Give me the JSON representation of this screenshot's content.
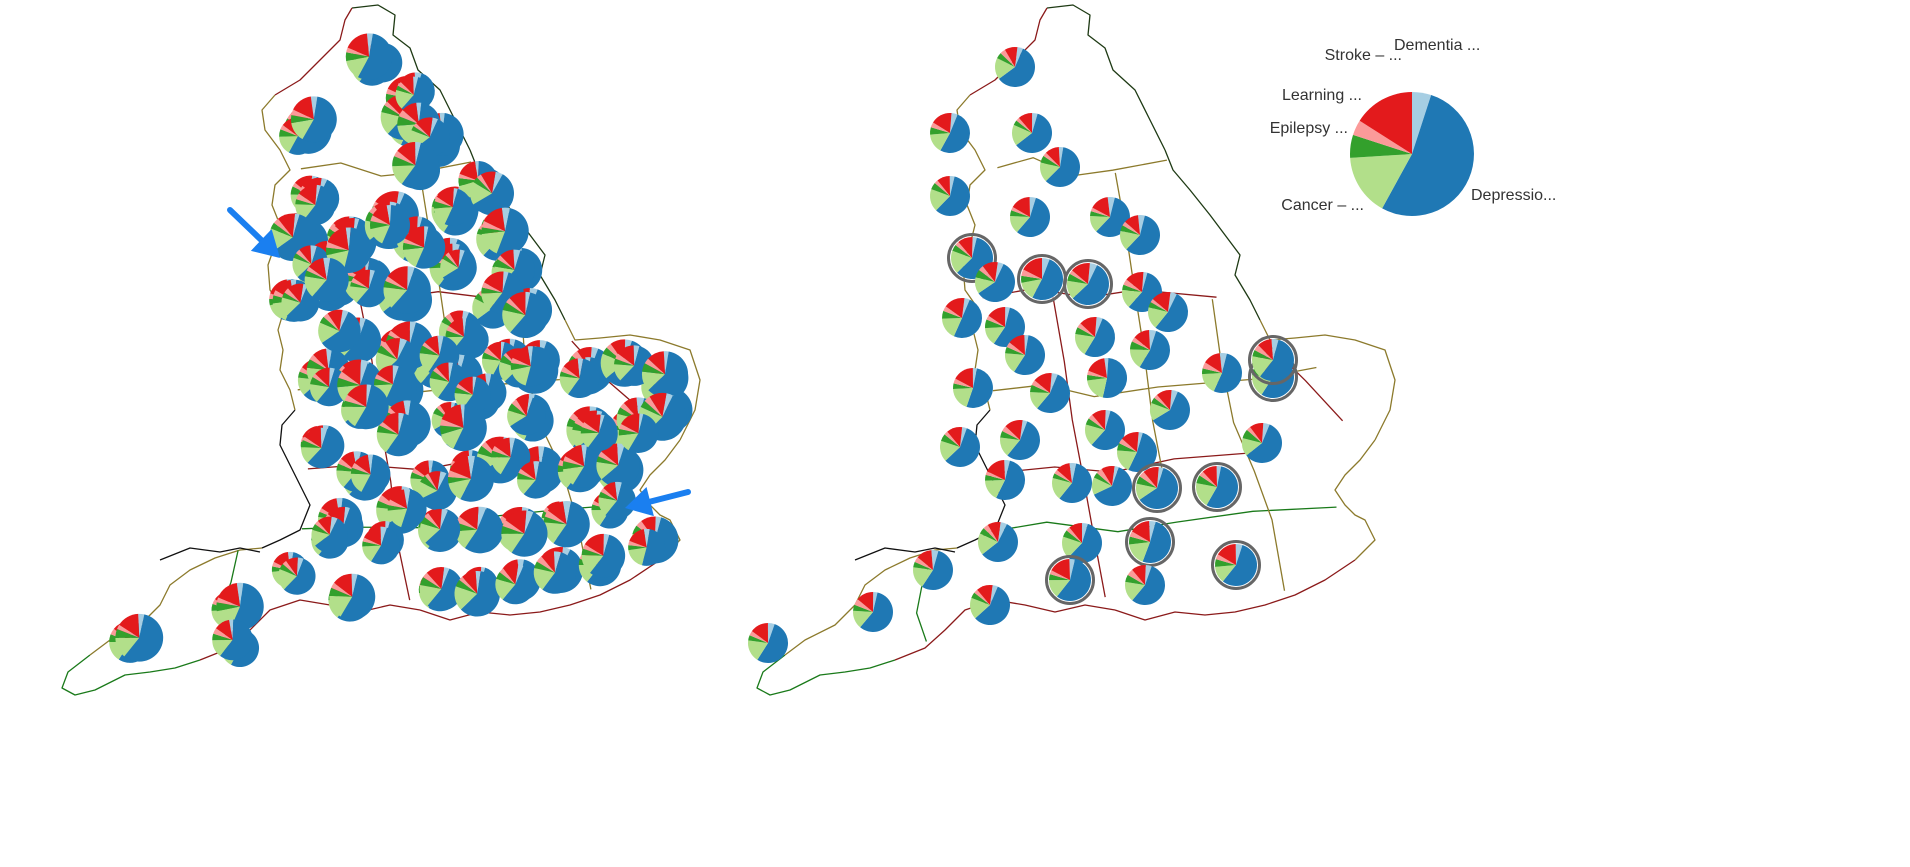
{
  "colors": {
    "depression": "#1f78b4",
    "cancer": "#b2df8a",
    "epilepsy": "#33a02c",
    "learning": "#fb9a99",
    "stroke": "#e31a1c",
    "dementia": "#a6cee3",
    "arrow": "#1a7ff0",
    "highlight_ring": "#666666",
    "boundary_dark": "#1e3a14",
    "boundary_olive": "#8c7a2c",
    "boundary_red": "#8b1a1a",
    "boundary_green": "#1a7a1a",
    "boundary_black": "#111111"
  },
  "legend": {
    "categories": [
      {
        "key": "depression",
        "label": "Depressio...",
        "fraction": 0.53
      },
      {
        "key": "cancer",
        "label": "Cancer – ...",
        "fraction": 0.16
      },
      {
        "key": "epilepsy",
        "label": "Epilepsy ...",
        "fraction": 0.06
      },
      {
        "key": "learning",
        "label": "Learning ...",
        "fraction": 0.04
      },
      {
        "key": "stroke",
        "label": "Stroke – ...",
        "fraction": 0.16
      },
      {
        "key": "dementia",
        "label": "Dementia ...",
        "fraction": 0.05
      }
    ]
  },
  "maps": {
    "left": {
      "marker_count": 190,
      "arrows": 2
    },
    "right": {
      "marker_count": 58,
      "highlighted_markers": 10
    }
  }
}
